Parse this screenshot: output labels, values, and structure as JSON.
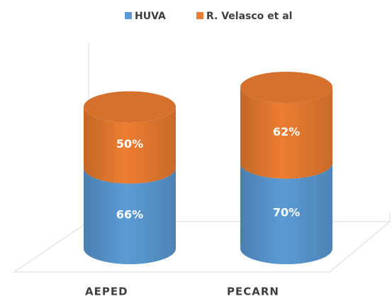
{
  "chart_data": {
    "type": "bar",
    "stacked": true,
    "categories": [
      "AEPED",
      "PECARN"
    ],
    "series": [
      {
        "name": "HUVA",
        "color": "#5b9bd5",
        "values": [
          66,
          70
        ],
        "value_labels": [
          "66%",
          "70%"
        ]
      },
      {
        "name": "R. Velasco et al",
        "color": "#ed7d31",
        "values": [
          50,
          62
        ],
        "value_labels": [
          "50%",
          "62%"
        ]
      }
    ],
    "legend": "top"
  }
}
